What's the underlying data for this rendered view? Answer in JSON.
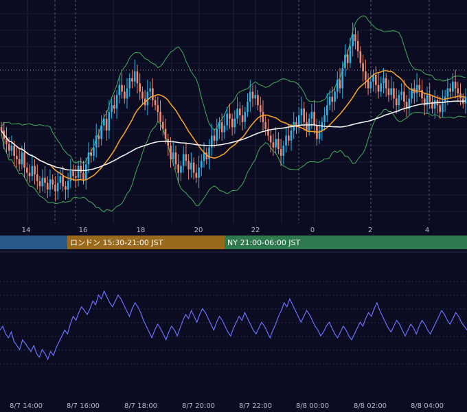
{
  "chart_data": [
    {
      "type": "candlestick",
      "overlays": [
        {
          "kind": "bollinger-band",
          "color": "#3fae5a"
        },
        {
          "kind": "moving-average-short",
          "color": "#f5a02a"
        },
        {
          "kind": "moving-average-long",
          "color": "#f2f2f2"
        }
      ],
      "candle_colors": {
        "up": "#2bb3e6",
        "down": "#f08a72"
      },
      "x_tick_labels": [
        "14",
        "16",
        "18",
        "20",
        "22",
        "0",
        "2",
        "4"
      ],
      "session_bands": [
        {
          "label": "",
          "color": "#2a5a8a"
        },
        {
          "label": "ロンドン 15:30-21:00 JST",
          "color": "#9a6a1c"
        },
        {
          "label": "NY 21:00-06:00 JST",
          "color": "#2e7a4e"
        }
      ],
      "series": [
        {
          "key": "close",
          "values": [
            0.55,
            0.5,
            0.47,
            0.43,
            0.46,
            0.4,
            0.38,
            0.35,
            0.42,
            0.33,
            0.3,
            0.28,
            0.34,
            0.29,
            0.25,
            0.22,
            0.27,
            0.24,
            0.2,
            0.26,
            0.23,
            0.19,
            0.24,
            0.28,
            0.22,
            0.2,
            0.25,
            0.31,
            0.28,
            0.27,
            0.34,
            0.3,
            0.26,
            0.35,
            0.42,
            0.4,
            0.45,
            0.52,
            0.5,
            0.58,
            0.62,
            0.55,
            0.66,
            0.7,
            0.68,
            0.76,
            0.82,
            0.78,
            0.74,
            0.8,
            0.86,
            0.84,
            0.9,
            0.83,
            0.78,
            0.74,
            0.7,
            0.78,
            0.8,
            0.73,
            0.7,
            0.66,
            0.6,
            0.56,
            0.5,
            0.46,
            0.38,
            0.42,
            0.35,
            0.3,
            0.34,
            0.41,
            0.37,
            0.32,
            0.36,
            0.3,
            0.27,
            0.33,
            0.37,
            0.42,
            0.38,
            0.45,
            0.52,
            0.49,
            0.56,
            0.6,
            0.54,
            0.58,
            0.65,
            0.62,
            0.57,
            0.62,
            0.68,
            0.64,
            0.6,
            0.66,
            0.72,
            0.78,
            0.74,
            0.76,
            0.7,
            0.66,
            0.6,
            0.56,
            0.52,
            0.48,
            0.45,
            0.5,
            0.44,
            0.4,
            0.46,
            0.52,
            0.49,
            0.55,
            0.6,
            0.57,
            0.64,
            0.68,
            0.6,
            0.55,
            0.62,
            0.66,
            0.58,
            0.5,
            0.55,
            0.6,
            0.64,
            0.7,
            0.75,
            0.72,
            0.78,
            0.85,
            0.8,
            0.92,
            1.0,
            0.95,
            1.05,
            1.12,
            1.08,
            1.02,
            0.95,
            0.9,
            0.85,
            0.8,
            0.84,
            0.88,
            0.82,
            0.78,
            0.83,
            0.86,
            0.8,
            0.76,
            0.8,
            0.74,
            0.7,
            0.76,
            0.78,
            0.72,
            0.68,
            0.74,
            0.8,
            0.77,
            0.82,
            0.79,
            0.74,
            0.7,
            0.76,
            0.72,
            0.68,
            0.73,
            0.7,
            0.66,
            0.72,
            0.75,
            0.8,
            0.78,
            0.84,
            0.8,
            0.77,
            0.74,
            0.71,
            0.75
          ]
        }
      ]
    },
    {
      "type": "line",
      "series": [
        {
          "key": "oscillator",
          "color": "#6a72ff",
          "values": [
            48,
            50,
            46,
            44,
            47,
            42,
            40,
            38,
            43,
            41,
            39,
            37,
            40,
            36,
            34,
            38,
            36,
            33,
            37,
            35,
            39,
            42,
            45,
            48,
            46,
            51,
            55,
            53,
            57,
            60,
            58,
            56,
            59,
            63,
            61,
            66,
            64,
            68,
            65,
            62,
            60,
            63,
            66,
            64,
            61,
            58,
            55,
            59,
            62,
            60,
            57,
            53,
            50,
            47,
            44,
            48,
            51,
            49,
            46,
            43,
            47,
            50,
            48,
            45,
            49,
            53,
            56,
            54,
            58,
            55,
            52,
            56,
            59,
            57,
            54,
            51,
            48,
            52,
            55,
            53,
            50,
            47,
            45,
            49,
            52,
            55,
            53,
            57,
            54,
            51,
            48,
            46,
            49,
            52,
            50,
            47,
            44,
            48,
            51,
            55,
            58,
            62,
            60,
            64,
            61,
            58,
            55,
            52,
            55,
            58,
            56,
            53,
            50,
            48,
            45,
            47,
            50,
            52,
            49,
            46,
            44,
            47,
            50,
            48,
            45,
            43,
            46,
            49,
            52,
            50,
            54,
            57,
            55,
            59,
            62,
            58,
            55,
            52,
            49,
            47,
            50,
            53,
            51,
            48,
            45,
            48,
            51,
            49,
            46,
            50,
            53,
            51,
            48,
            46,
            49,
            52,
            55,
            58,
            56,
            53,
            51,
            54,
            57,
            55,
            52,
            50,
            48
          ]
        }
      ],
      "x_tick_labels": [
        "8/7 14:00",
        "8/7 16:00",
        "8/7 18:00",
        "8/7 20:00",
        "8/7 22:00",
        "8/8 00:00",
        "8/8 02:00",
        "8/8 04:00"
      ]
    }
  ]
}
